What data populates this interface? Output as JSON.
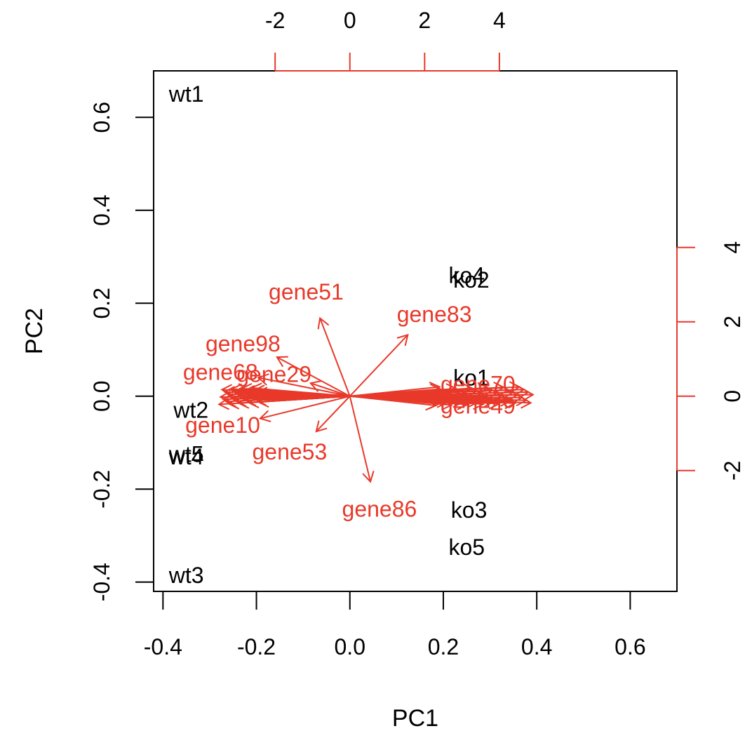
{
  "chart_data": {
    "type": "scatter",
    "subtype": "biplot",
    "xlabel": "PC1",
    "ylabel": "PC2",
    "xlim": [
      -0.42,
      0.7
    ],
    "ylim": [
      -0.42,
      0.7
    ],
    "xticks": [
      "-0.4",
      "-0.2",
      "0.0",
      "0.2",
      "0.4",
      "0.6"
    ],
    "xtick_values": [
      -0.4,
      -0.2,
      0.0,
      0.2,
      0.4,
      0.6
    ],
    "yticks": [
      "-0.4",
      "-0.2",
      "0.0",
      "0.2",
      "0.4",
      "0.6"
    ],
    "ytick_values": [
      -0.4,
      -0.2,
      0.0,
      0.2,
      0.4,
      0.6
    ],
    "top_axis": {
      "ticks": [
        "-2",
        "0",
        "2",
        "4"
      ],
      "values": [
        -2,
        0,
        2,
        4
      ],
      "lim": [
        -5.25,
        8.75
      ]
    },
    "right_axis": {
      "ticks": [
        "-2",
        "0",
        "2",
        "4"
      ],
      "values": [
        -2,
        0,
        2,
        4
      ],
      "lim": [
        -5.25,
        8.75
      ]
    },
    "samples": [
      {
        "label": "wt1",
        "x": -0.35,
        "y": 0.65
      },
      {
        "label": "wt2",
        "x": -0.34,
        "y": -0.03
      },
      {
        "label": "wt3",
        "x": -0.35,
        "y": -0.385
      },
      {
        "label": "wt4",
        "x": -0.35,
        "y": -0.13
      },
      {
        "label": "wt5",
        "x": -0.35,
        "y": -0.125
      },
      {
        "label": "ko1",
        "x": 0.26,
        "y": 0.04
      },
      {
        "label": "ko2",
        "x": 0.26,
        "y": 0.25
      },
      {
        "label": "ko3",
        "x": 0.255,
        "y": -0.245
      },
      {
        "label": "ko4",
        "x": 0.25,
        "y": 0.26
      },
      {
        "label": "ko5",
        "x": 0.25,
        "y": -0.325
      }
    ],
    "genes": [
      {
        "label": "gene51",
        "x": -0.8,
        "y": 2.1
      },
      {
        "label": "gene83",
        "x": 1.55,
        "y": 1.65
      },
      {
        "label": "gene98",
        "x": -1.95,
        "y": 1.05
      },
      {
        "label": "gene68",
        "x": -2.45,
        "y": 0.5
      },
      {
        "label": "gene29",
        "x": -1.05,
        "y": 0.35
      },
      {
        "label": "gene70",
        "x": 2.4,
        "y": 0.25
      },
      {
        "label": "gene49",
        "x": 2.4,
        "y": -0.2
      },
      {
        "label": "gene10",
        "x": -2.4,
        "y": -0.6
      },
      {
        "label": "gene53",
        "x": -0.9,
        "y": -0.95
      },
      {
        "label": "gene86",
        "x": 0.55,
        "y": -2.3
      }
    ],
    "bundle_left": {
      "x_min": -3.5,
      "x_max": -2.4,
      "y_min": -0.22,
      "y_max": 0.22
    },
    "bundle_right": {
      "x_min": 2.3,
      "x_max": 4.9,
      "y_min": -0.25,
      "y_max": 0.25
    },
    "colors": {
      "samples": "#000000",
      "genes": "#e8392a",
      "axes": "#000000",
      "loading_axes": "#e8392a"
    }
  }
}
